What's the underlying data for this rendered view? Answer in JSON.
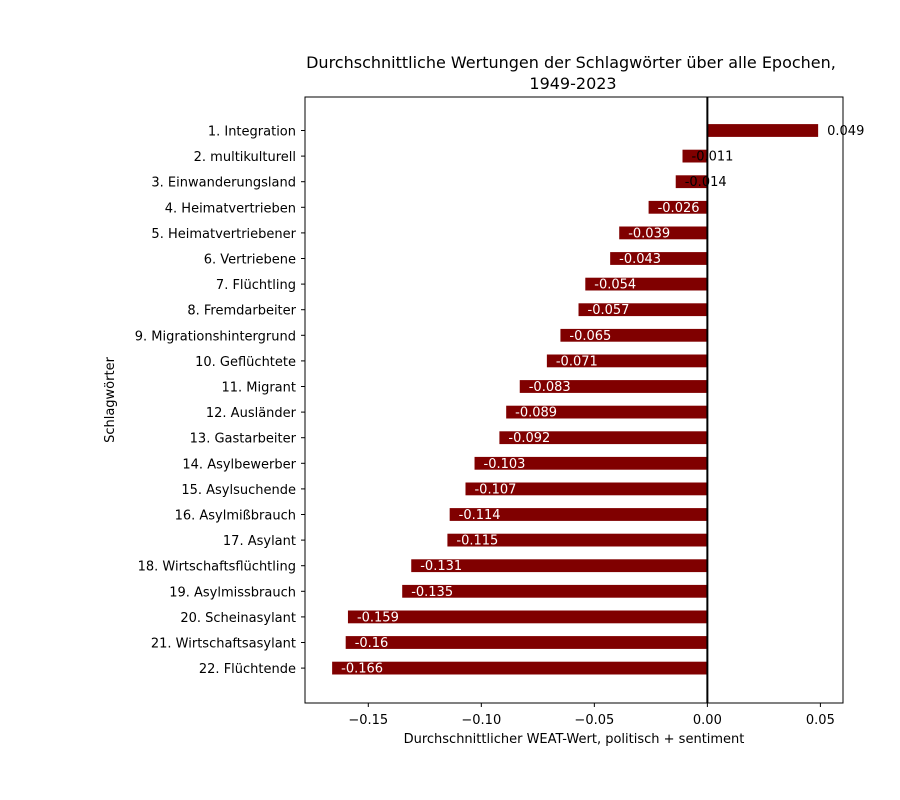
{
  "chart_data": {
    "type": "bar",
    "orientation": "horizontal",
    "title": "Durchschnittliche Wertungen der Schlagwörter über alle Epochen,",
    "subtitle": "1949-2023",
    "xlabel": "Durchschnittlicher WEAT-Wert, politisch + sentiment",
    "ylabel": "Schlagwörter",
    "xlim": [
      -0.178,
      0.06
    ],
    "xticks": [
      -0.15,
      -0.1,
      -0.05,
      0.0,
      0.05
    ],
    "xtick_labels": [
      "−0.15",
      "−0.10",
      "−0.05",
      "0.00",
      "0.05"
    ],
    "bar_color": "#800000",
    "zero_line": true,
    "grid": false,
    "categories": [
      "1. Integration",
      "2. multikulturell",
      "3. Einwanderungsland",
      "4. Heimatvertrieben",
      "5. Heimatvertriebener",
      "6. Vertriebene",
      "7. Flüchtling",
      "8. Fremdarbeiter",
      "9. Migrationshintergrund",
      "10. Geflüchtete",
      "11. Migrant",
      "12. Ausländer",
      "13. Gastarbeiter",
      "14. Asylbewerber",
      "15. Asylsuchende",
      "16. Asylmißbrauch",
      "17. Asylant",
      "18. Wirtschaftsflüchtling",
      "19. Asylmissbrauch",
      "20. Scheinasylant",
      "21. Wirtschaftsasylant",
      "22. Flüchtende"
    ],
    "values": [
      0.049,
      -0.011,
      -0.014,
      -0.026,
      -0.039,
      -0.043,
      -0.054,
      -0.057,
      -0.065,
      -0.071,
      -0.083,
      -0.089,
      -0.092,
      -0.103,
      -0.107,
      -0.114,
      -0.115,
      -0.131,
      -0.135,
      -0.159,
      -0.16,
      -0.166
    ],
    "value_labels": [
      "0.049",
      "-0.011",
      "-0.014",
      "-0.026",
      "-0.039",
      "-0.043",
      "-0.054",
      "-0.057",
      "-0.065",
      "-0.071",
      "-0.083",
      "-0.089",
      "-0.092",
      "-0.103",
      "-0.107",
      "-0.114",
      "-0.115",
      "-0.131",
      "-0.135",
      "-0.159",
      "-0.16",
      "-0.166"
    ]
  }
}
